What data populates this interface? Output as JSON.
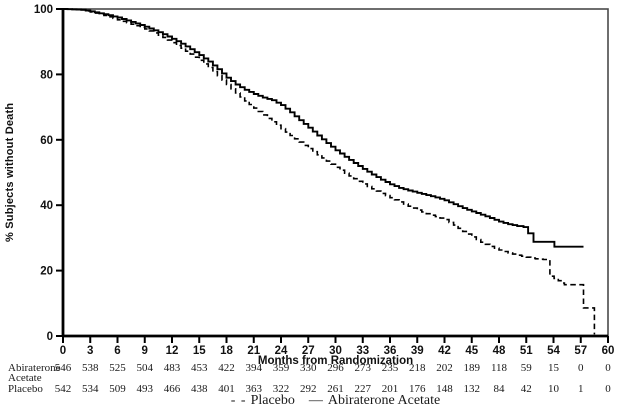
{
  "chart_data": {
    "type": "line",
    "title": "",
    "xlabel": "Months from Randomization",
    "ylabel": "% Subjects without Death",
    "xlim": [
      0,
      60
    ],
    "ylim": [
      0,
      100
    ],
    "grid": false,
    "legend_position": "bottom",
    "xticks": [
      0,
      3,
      6,
      9,
      12,
      15,
      18,
      21,
      24,
      27,
      30,
      33,
      36,
      39,
      42,
      45,
      48,
      51,
      54,
      57,
      60
    ],
    "yticks": [
      0,
      20,
      40,
      60,
      80,
      100
    ],
    "series": [
      {
        "name": "Placebo",
        "line_style": "dashed",
        "color": "#000000",
        "points": [
          [
            0,
            100
          ],
          [
            2,
            99.7
          ],
          [
            3,
            99.1
          ],
          [
            4,
            98.4
          ],
          [
            5,
            97.6
          ],
          [
            6,
            96.7
          ],
          [
            7,
            95.8
          ],
          [
            8,
            94.9
          ],
          [
            9,
            93.9
          ],
          [
            10,
            92.7
          ],
          [
            11,
            91.3
          ],
          [
            12,
            89.7
          ],
          [
            13,
            88.0
          ],
          [
            14,
            86.2
          ],
          [
            15,
            84.3
          ],
          [
            16,
            82.1
          ],
          [
            17,
            79.6
          ],
          [
            18,
            76.9
          ],
          [
            19,
            74.3
          ],
          [
            20,
            71.9
          ],
          [
            21,
            69.7
          ],
          [
            22,
            67.6
          ],
          [
            23,
            65.5
          ],
          [
            24,
            63.4
          ],
          [
            25,
            61.3
          ],
          [
            26,
            59.3
          ],
          [
            27,
            57.3
          ],
          [
            28,
            55.4
          ],
          [
            29,
            53.5
          ],
          [
            30,
            51.6
          ],
          [
            31,
            49.8
          ],
          [
            32,
            48.1
          ],
          [
            33,
            46.5
          ],
          [
            34,
            45.0
          ],
          [
            35,
            43.6
          ],
          [
            36,
            42.3
          ],
          [
            37,
            41.0
          ],
          [
            38,
            39.7
          ],
          [
            39,
            38.5
          ],
          [
            40,
            37.4
          ],
          [
            41,
            36.5
          ],
          [
            42,
            35.6
          ],
          [
            43,
            33.9
          ],
          [
            44,
            32.0
          ],
          [
            45,
            30.3
          ],
          [
            46,
            28.7
          ],
          [
            47,
            27.4
          ],
          [
            48,
            26.3
          ],
          [
            49,
            25.4
          ],
          [
            50,
            24.7
          ],
          [
            51,
            24.1
          ],
          [
            52,
            23.6
          ],
          [
            53.3,
            23.3
          ],
          [
            53.6,
            18.3
          ],
          [
            55.0,
            16.2
          ],
          [
            55.2,
            15.7
          ],
          [
            57.1,
            15.7
          ],
          [
            57.3,
            8.6
          ],
          [
            58.4,
            8.6
          ],
          [
            58.5,
            0.5
          ]
        ]
      },
      {
        "name": "Abiraterone Acetate",
        "line_style": "solid",
        "color": "#000000",
        "points": [
          [
            0,
            100
          ],
          [
            2,
            99.8
          ],
          [
            3,
            99.3
          ],
          [
            4,
            98.7
          ],
          [
            5,
            98.1
          ],
          [
            6,
            97.4
          ],
          [
            7,
            96.5
          ],
          [
            8,
            95.6
          ],
          [
            9,
            94.6
          ],
          [
            10,
            93.5
          ],
          [
            11,
            92.3
          ],
          [
            12,
            90.9
          ],
          [
            13,
            89.4
          ],
          [
            14,
            87.7
          ],
          [
            15,
            85.9
          ],
          [
            16,
            83.9
          ],
          [
            17,
            81.6
          ],
          [
            18,
            79.0
          ],
          [
            19,
            76.9
          ],
          [
            20,
            75.3
          ],
          [
            21,
            74.0
          ],
          [
            22,
            72.9
          ],
          [
            23,
            72.1
          ],
          [
            24,
            70.6
          ],
          [
            25,
            68.4
          ],
          [
            26,
            66.0
          ],
          [
            27,
            63.7
          ],
          [
            28,
            61.3
          ],
          [
            29,
            59.0
          ],
          [
            30,
            56.8
          ],
          [
            31,
            54.8
          ],
          [
            32,
            52.9
          ],
          [
            33,
            51.1
          ],
          [
            34,
            49.4
          ],
          [
            35,
            47.8
          ],
          [
            36,
            46.4
          ],
          [
            37,
            45.3
          ],
          [
            38,
            44.5
          ],
          [
            39,
            43.8
          ],
          [
            40,
            43.1
          ],
          [
            41,
            42.4
          ],
          [
            42,
            41.5
          ],
          [
            43,
            40.3
          ],
          [
            44,
            39.1
          ],
          [
            45,
            38.1
          ],
          [
            46,
            37.1
          ],
          [
            47,
            36.1
          ],
          [
            48,
            35.0
          ],
          [
            49,
            34.2
          ],
          [
            50,
            33.6
          ],
          [
            50.7,
            33.3
          ],
          [
            51.2,
            31.4
          ],
          [
            51.8,
            28.8
          ],
          [
            53.9,
            28.8
          ],
          [
            54.1,
            27.3
          ],
          [
            57.3,
            27.3
          ]
        ]
      }
    ]
  },
  "axes": {
    "ylabel": "% Subjects without Death",
    "xlabel": "Months from Randomization"
  },
  "legend": {
    "placebo_marker": "- -",
    "placebo_label": "Placebo",
    "abiraterone_marker": "—",
    "abiraterone_label": "Abiraterone Acetate"
  },
  "risk_table": {
    "timepoints": [
      0,
      3,
      6,
      9,
      12,
      15,
      18,
      21,
      24,
      27,
      30,
      33,
      36,
      39,
      42,
      45,
      48,
      51,
      54,
      57,
      60
    ],
    "rows": [
      {
        "label_line1": "Abiraterone",
        "label_line2": "Acetate",
        "counts": [
          546,
          538,
          525,
          504,
          483,
          453,
          422,
          394,
          359,
          330,
          296,
          273,
          235,
          218,
          202,
          189,
          118,
          59,
          15,
          0,
          0
        ]
      },
      {
        "label_line1": "Placebo",
        "label_line2": "",
        "counts": [
          542,
          534,
          509,
          493,
          466,
          438,
          401,
          363,
          322,
          292,
          261,
          227,
          201,
          176,
          148,
          132,
          84,
          42,
          10,
          1,
          0
        ]
      }
    ]
  }
}
